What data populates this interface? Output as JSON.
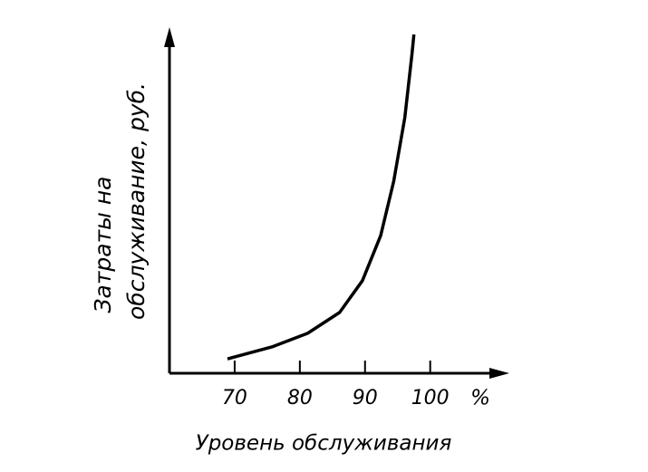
{
  "chart_data": {
    "type": "line",
    "y_label_lines": [
      "Затраты на",
      "обслуживание, руб."
    ],
    "x_label": "Уровень обслуживания",
    "x_unit": "%",
    "x": [
      68.9,
      75.7,
      81.2,
      86.1,
      89.6,
      92.4,
      94.4,
      96.1,
      97.2,
      97.5
    ],
    "series": [
      {
        "color": "#000000",
        "values": [
          4.2,
          7.7,
          11.7,
          17.8,
          27.1,
          40.3,
          56.2,
          74.8,
          93.4,
          99.2
        ]
      }
    ],
    "xlim": [
      60,
      112
    ],
    "xticks": [
      70,
      80,
      90,
      100
    ],
    "ylim": [
      0,
      100
    ]
  }
}
